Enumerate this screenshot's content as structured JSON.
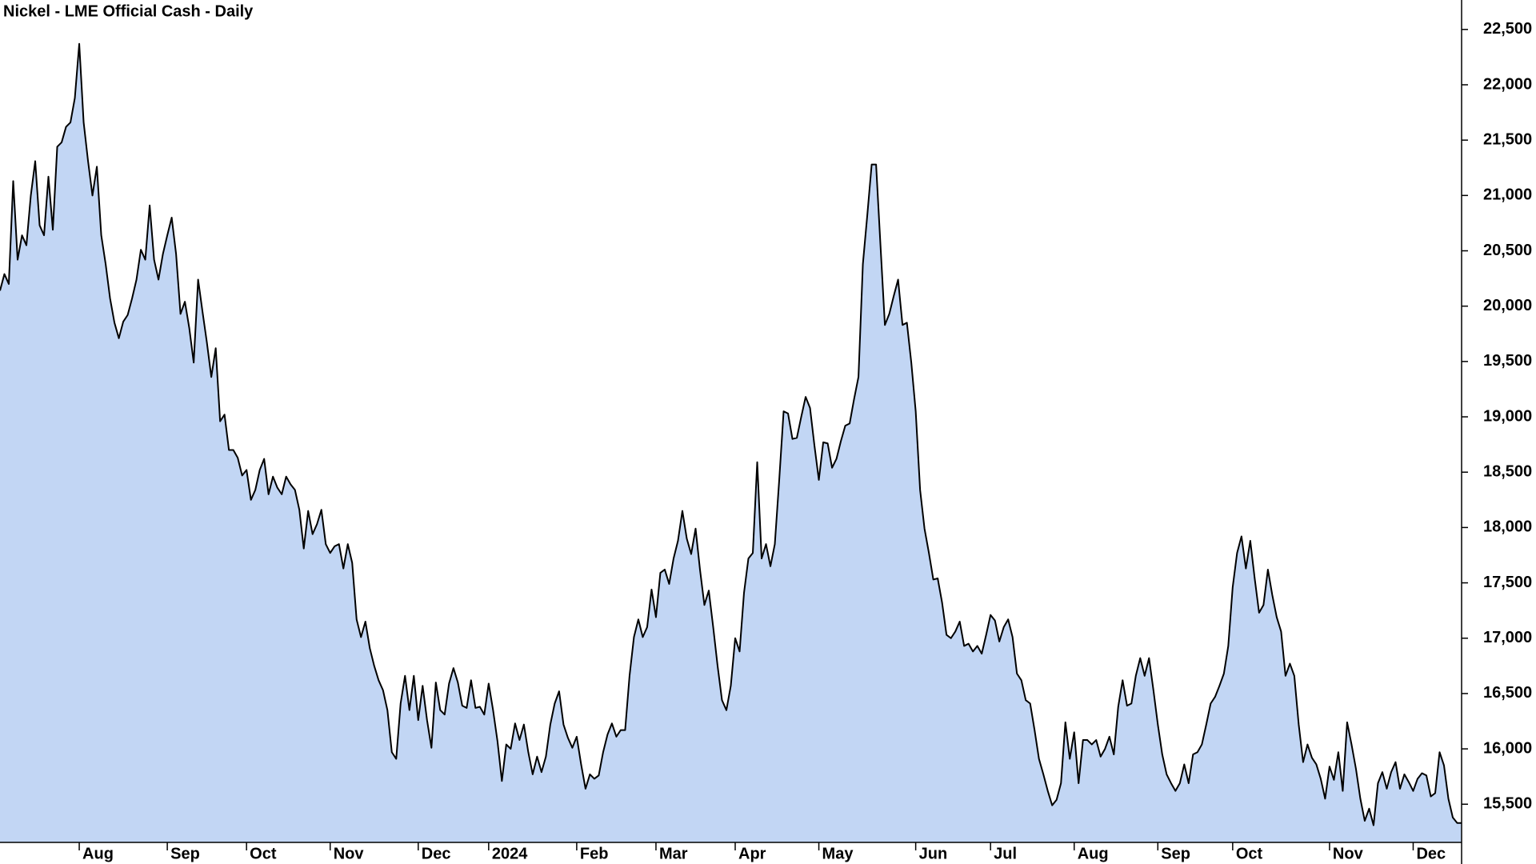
{
  "chart_data": {
    "type": "area",
    "title": "Nickel - LME Official Cash - Daily",
    "color": "#c2d6f4",
    "line_color": "#000000",
    "ylim": [
      15155,
      22766
    ],
    "yticks": [
      {
        "value": 15500,
        "label": "15,500"
      },
      {
        "value": 16000,
        "label": "16,000"
      },
      {
        "value": 16500,
        "label": "16,500"
      },
      {
        "value": 17000,
        "label": "17,000"
      },
      {
        "value": 17500,
        "label": "17,500"
      },
      {
        "value": 18000,
        "label": "18,000"
      },
      {
        "value": 18500,
        "label": "18,500"
      },
      {
        "value": 19000,
        "label": "19,000"
      },
      {
        "value": 19500,
        "label": "19,500"
      },
      {
        "value": 20000,
        "label": "20,000"
      },
      {
        "value": 20500,
        "label": "20,500"
      },
      {
        "value": 21000,
        "label": "21,000"
      },
      {
        "value": 21500,
        "label": "21,500"
      },
      {
        "value": 22000,
        "label": "22,000"
      },
      {
        "value": 22500,
        "label": "22,500"
      }
    ],
    "categories": [
      null,
      null,
      null,
      null,
      null,
      null,
      null,
      null,
      null,
      null,
      null,
      null,
      null,
      null,
      null,
      null,
      null,
      null,
      "Aug",
      null,
      null,
      null,
      null,
      null,
      null,
      null,
      null,
      null,
      null,
      null,
      null,
      null,
      null,
      null,
      null,
      null,
      null,
      null,
      "Sep",
      null,
      null,
      null,
      null,
      null,
      null,
      null,
      null,
      null,
      null,
      null,
      null,
      null,
      null,
      null,
      null,
      null,
      "Oct",
      null,
      null,
      null,
      null,
      null,
      null,
      null,
      null,
      null,
      null,
      null,
      null,
      null,
      null,
      null,
      null,
      null,
      null,
      "Nov",
      null,
      null,
      null,
      null,
      null,
      null,
      null,
      null,
      null,
      null,
      null,
      null,
      null,
      null,
      null,
      null,
      null,
      null,
      null,
      "Dec",
      null,
      null,
      null,
      null,
      null,
      null,
      null,
      null,
      null,
      null,
      null,
      null,
      null,
      null,
      null,
      "2024",
      null,
      null,
      null,
      null,
      null,
      null,
      null,
      null,
      null,
      null,
      null,
      null,
      null,
      null,
      null,
      null,
      null,
      null,
      null,
      "Feb",
      null,
      null,
      null,
      null,
      null,
      null,
      null,
      null,
      null,
      null,
      null,
      null,
      null,
      null,
      null,
      null,
      null,
      "Mar",
      null,
      null,
      null,
      null,
      null,
      null,
      null,
      null,
      null,
      null,
      null,
      null,
      null,
      null,
      null,
      null,
      null,
      "Apr",
      null,
      null,
      null,
      null,
      null,
      null,
      null,
      null,
      null,
      null,
      null,
      null,
      null,
      null,
      null,
      null,
      null,
      null,
      "May",
      null,
      null,
      null,
      null,
      null,
      null,
      null,
      null,
      null,
      null,
      null,
      null,
      null,
      null,
      null,
      null,
      null,
      null,
      null,
      null,
      null,
      "Jun",
      null,
      null,
      null,
      null,
      null,
      null,
      null,
      null,
      null,
      null,
      null,
      null,
      null,
      null,
      null,
      null,
      "Jul",
      null,
      null,
      null,
      null,
      null,
      null,
      null,
      null,
      null,
      null,
      null,
      null,
      null,
      null,
      null,
      null,
      null,
      null,
      "Aug",
      null,
      null,
      null,
      null,
      null,
      null,
      null,
      null,
      null,
      null,
      null,
      null,
      null,
      null,
      null,
      null,
      null,
      null,
      "Sep",
      null,
      null,
      null,
      null,
      null,
      null,
      null,
      null,
      null,
      null,
      null,
      null,
      null,
      null,
      null,
      null,
      "Oct",
      null,
      null,
      null,
      null,
      null,
      null,
      null,
      null,
      null,
      null,
      null,
      null,
      null,
      null,
      null,
      null,
      null,
      null,
      null,
      null,
      null,
      "Nov",
      null,
      null,
      null,
      null,
      null,
      null,
      null,
      null,
      null,
      null,
      null,
      null,
      null,
      null,
      null,
      null,
      null,
      null,
      "Dec",
      null,
      null,
      null,
      null,
      null,
      null,
      null,
      null,
      null,
      null,
      null
    ],
    "values": [
      20140,
      20290,
      20200,
      21130,
      20420,
      20640,
      20550,
      21000,
      21310,
      20730,
      20640,
      21170,
      20690,
      21440,
      21480,
      21620,
      21660,
      21880,
      22370,
      21660,
      21310,
      21000,
      21260,
      20640,
      20380,
      20070,
      19850,
      19710,
      19860,
      19920,
      20070,
      20240,
      20510,
      20420,
      20910,
      20420,
      20240,
      20470,
      20640,
      20800,
      20470,
      19930,
      20040,
      19800,
      19490,
      20240,
      19950,
      19670,
      19360,
      19620,
      18960,
      19020,
      18700,
      18700,
      18630,
      18470,
      18520,
      18250,
      18340,
      18520,
      18620,
      18300,
      18460,
      18360,
      18300,
      18460,
      18390,
      18340,
      18160,
      17810,
      18150,
      17940,
      18030,
      18160,
      17850,
      17770,
      17830,
      17850,
      17630,
      17850,
      17680,
      17170,
      17010,
      17150,
      16910,
      16750,
      16620,
      16530,
      16350,
      15970,
      15910,
      16410,
      16660,
      16350,
      16660,
      16260,
      16570,
      16260,
      16010,
      16600,
      16350,
      16310,
      16590,
      16730,
      16600,
      16390,
      16370,
      16620,
      16370,
      16380,
      16310,
      16590,
      16350,
      16070,
      15710,
      16040,
      16000,
      16230,
      16080,
      16220,
      15970,
      15770,
      15930,
      15790,
      15930,
      16220,
      16410,
      16520,
      16220,
      16100,
      16010,
      16110,
      15860,
      15640,
      15770,
      15730,
      15760,
      15970,
      16130,
      16230,
      16110,
      16170,
      16170,
      16660,
      17010,
      17170,
      17010,
      17100,
      17440,
      17190,
      17590,
      17620,
      17490,
      17720,
      17880,
      18150,
      17900,
      17760,
      17990,
      17620,
      17300,
      17430,
      17100,
      16750,
      16440,
      16350,
      16570,
      17000,
      16880,
      17410,
      17720,
      17770,
      18590,
      17720,
      17850,
      17650,
      17850,
      18430,
      19050,
      19030,
      18800,
      18810,
      19000,
      19180,
      19080,
      18740,
      18430,
      18770,
      18760,
      18540,
      18620,
      18780,
      18920,
      18940,
      19160,
      19360,
      20380,
      20820,
      21280,
      21280,
      20550,
      19830,
      19930,
      20090,
      20240,
      19830,
      19850,
      19490,
      19050,
      18340,
      17990,
      17770,
      17530,
      17540,
      17320,
      17030,
      17000,
      17060,
      17150,
      16930,
      16950,
      16880,
      16930,
      16860,
      17030,
      17210,
      17160,
      16970,
      17100,
      17170,
      17010,
      16680,
      16620,
      16440,
      16410,
      16170,
      15910,
      15770,
      15620,
      15490,
      15540,
      15690,
      16240,
      15910,
      16150,
      15690,
      16080,
      16080,
      16040,
      16080,
      15930,
      16000,
      16110,
      15950,
      16380,
      16620,
      16390,
      16410,
      16660,
      16820,
      16660,
      16820,
      16530,
      16220,
      15950,
      15770,
      15690,
      15620,
      15690,
      15860,
      15690,
      15950,
      15970,
      16040,
      16220,
      16410,
      16470,
      16570,
      16680,
      16930,
      17460,
      17770,
      17920,
      17630,
      17880,
      17540,
      17230,
      17300,
      17620,
      17390,
      17190,
      17060,
      16660,
      16770,
      16660,
      16220,
      15880,
      16040,
      15920,
      15860,
      15730,
      15550,
      15840,
      15720,
      15970,
      15620,
      16240,
      16040,
      15820,
      15550,
      15350,
      15460,
      15310,
      15690,
      15790,
      15640,
      15790,
      15880,
      15640,
      15770,
      15700,
      15620,
      15730,
      15780,
      15760,
      15570,
      15600,
      15970,
      15850,
      15550,
      15380,
      15330,
      15330
    ]
  }
}
